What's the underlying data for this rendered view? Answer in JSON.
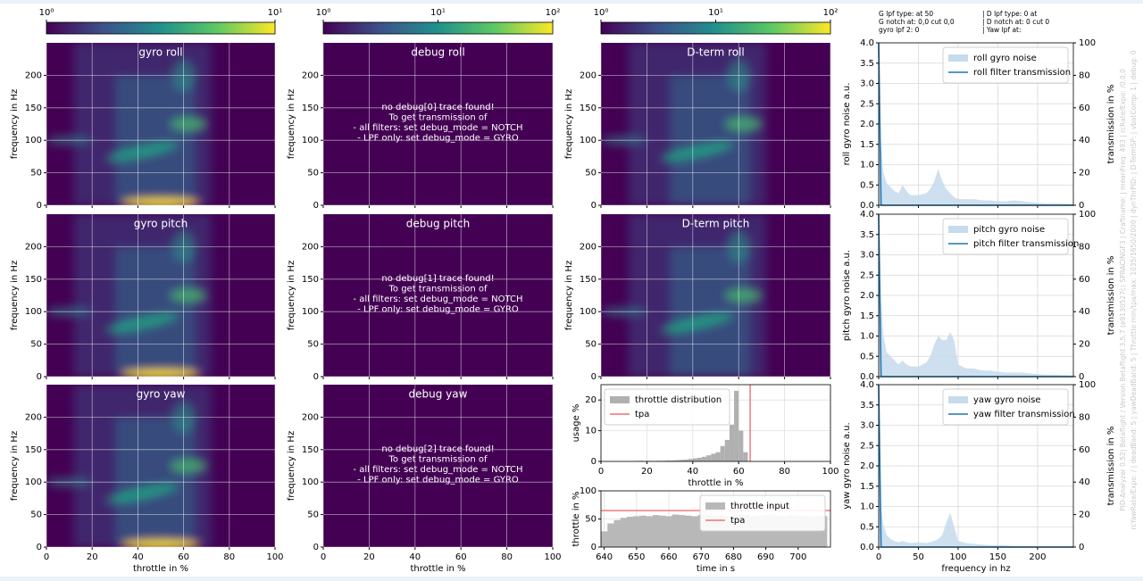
{
  "info": [
    "G lpf type:  at 50",
    "G notch at: 0,0 cut 0,0",
    "gyro lpf 2: 0",
    "| D lpf type: 0 at",
    "| D notch at: 0 cut 0",
    "| Yaw lpf at:"
  ],
  "footer": [
    "PID-Analyzer 0.52| Betaflight / Version Betaflight 3.5.7 (e9130527c) SPRACINGF3 | Craftname:  | meanFreq: 493 | rcRate/Expo: /0.0,0",
    "rcYawRate/Expo: / | deadBand: 5 | yawDeadBand: 5 | Throttle min/tpa/max: 1035/1650/2000 | dynThrPID: | D-TermSP: | vbatComp: 1 | debug: 0"
  ],
  "chart_data": [
    {
      "type": "colorbar",
      "log": true,
      "xlim": [
        1,
        10
      ],
      "xticks": [
        {
          "value": 1,
          "label": "10⁰"
        },
        {
          "value": 10,
          "label": "10¹"
        }
      ]
    },
    {
      "type": "colorbar",
      "log": true,
      "xlim": [
        1,
        100
      ],
      "xticks": [
        {
          "value": 1,
          "label": "10⁰"
        },
        {
          "value": 10,
          "label": "10¹"
        },
        {
          "value": 100,
          "label": "10²"
        }
      ]
    },
    {
      "type": "colorbar",
      "log": true,
      "xlim": [
        1,
        100
      ],
      "xticks": [
        {
          "value": 1,
          "label": "10⁰"
        },
        {
          "value": 10,
          "label": "10¹"
        },
        {
          "value": 100,
          "label": "10²"
        }
      ]
    },
    {
      "type": "heatmap",
      "title": "gyro roll",
      "ylabel": "frequency in Hz",
      "xlim": [
        0,
        100
      ],
      "xticks": [
        0,
        20,
        40,
        60,
        80,
        100
      ],
      "ylim": [
        0,
        250
      ],
      "yticks": [
        0,
        50,
        100,
        150,
        200
      ]
    },
    {
      "type": "heatmap",
      "title": "gyro pitch",
      "ylabel": "frequency in Hz",
      "xlim": [
        0,
        100
      ],
      "xticks": [
        0,
        20,
        40,
        60,
        80,
        100
      ],
      "ylim": [
        0,
        250
      ],
      "yticks": [
        0,
        50,
        100,
        150,
        200
      ]
    },
    {
      "type": "heatmap",
      "title": "gyro yaw",
      "ylabel": "frequency in Hz",
      "xlabel": "throttle in %",
      "xlim": [
        0,
        100
      ],
      "xticks": [
        0,
        20,
        40,
        60,
        80,
        100
      ],
      "ylim": [
        0,
        250
      ],
      "yticks": [
        0,
        50,
        100,
        150,
        200
      ]
    },
    {
      "type": "heatmap",
      "title": "debug roll",
      "ylabel": "frequency in Hz",
      "xlim": [
        0,
        100
      ],
      "xticks": [
        0,
        20,
        40,
        60,
        80,
        100
      ],
      "ylim": [
        0,
        250
      ],
      "yticks": [
        0,
        50,
        100,
        150,
        200
      ],
      "annotation": [
        "no debug[0] trace found!",
        "To get transmission of",
        "- all filters: set debug_mode = NOTCH",
        "- LPF only: set debug_mode = GYRO"
      ]
    },
    {
      "type": "heatmap",
      "title": "debug pitch",
      "ylabel": "frequency in Hz",
      "xlim": [
        0,
        100
      ],
      "xticks": [
        0,
        20,
        40,
        60,
        80,
        100
      ],
      "ylim": [
        0,
        250
      ],
      "yticks": [
        0,
        50,
        100,
        150,
        200
      ],
      "annotation": [
        "no debug[1] trace found!",
        "To get transmission of",
        "- all filters: set debug_mode = NOTCH",
        "- LPF only: set debug_mode = GYRO"
      ]
    },
    {
      "type": "heatmap",
      "title": "debug yaw",
      "ylabel": "frequency in Hz",
      "xlabel": "throttle in %",
      "xlim": [
        0,
        100
      ],
      "xticks": [
        0,
        20,
        40,
        60,
        80,
        100
      ],
      "ylim": [
        0,
        250
      ],
      "yticks": [
        0,
        50,
        100,
        150,
        200
      ],
      "annotation": [
        "no debug[2] trace found!",
        "To get transmission of",
        "- all filters: set debug_mode = NOTCH",
        "- LPF only: set debug_mode = GYRO"
      ]
    },
    {
      "type": "heatmap",
      "title": "D-term roll",
      "ylabel": "frequency in Hz",
      "xlim": [
        0,
        100
      ],
      "xticks": [
        0,
        20,
        40,
        60,
        80,
        100
      ],
      "ylim": [
        0,
        250
      ],
      "yticks": [
        0,
        50,
        100,
        150,
        200
      ]
    },
    {
      "type": "heatmap",
      "title": "D-term pitch",
      "ylabel": "frequency in Hz",
      "xlim": [
        0,
        100
      ],
      "xticks": [
        0,
        20,
        40,
        60,
        80,
        100
      ],
      "ylim": [
        0,
        250
      ],
      "yticks": [
        0,
        50,
        100,
        150,
        200
      ]
    },
    {
      "type": "spectrum",
      "ylabel": "roll gyro noise a.u.",
      "y2label": "transmission in %",
      "legend": "upper right",
      "grid": true,
      "xlim": [
        0,
        245
      ],
      "xticks": [
        0,
        50,
        100,
        150,
        200
      ],
      "ylim": [
        0,
        4
      ],
      "yticks": [
        {
          "value": 0,
          "label": "0.0"
        },
        0.5,
        {
          "value": 1,
          "label": "1.0"
        },
        1.5,
        {
          "value": 2,
          "label": "2.0"
        },
        2.5,
        {
          "value": 3,
          "label": "3.0"
        },
        3.5,
        {
          "value": 4,
          "label": "4.0"
        }
      ],
      "y2lim": [
        0,
        100
      ],
      "y2ticks": [
        0,
        20,
        40,
        60,
        80,
        100
      ],
      "x": [
        0,
        3,
        6,
        10,
        15,
        20,
        25,
        30,
        35,
        40,
        50,
        60,
        65,
        70,
        75,
        80,
        85,
        90,
        95,
        100,
        110,
        120,
        130,
        140,
        150,
        160,
        170,
        180,
        190,
        200,
        210,
        220,
        230,
        245
      ],
      "series": [
        {
          "name": "roll gyro noise",
          "color": "#c6dbec",
          "values": [
            4,
            1.5,
            0.8,
            0.55,
            0.45,
            0.35,
            0.3,
            0.5,
            0.35,
            0.25,
            0.25,
            0.3,
            0.4,
            0.6,
            0.9,
            0.6,
            0.4,
            0.3,
            0.2,
            0.15,
            0.15,
            0.15,
            0.12,
            0.12,
            0.1,
            0.1,
            0.12,
            0.1,
            0.08,
            0.06,
            0.05,
            0.05,
            0.04,
            0.03
          ]
        },
        {
          "name": "roll filter transmission",
          "color": "#1f77b4",
          "axis": "y2",
          "values": [
            100,
            0,
            0,
            0,
            0,
            0,
            0,
            0,
            0,
            0,
            0,
            0,
            0,
            0,
            0,
            0,
            0,
            0,
            0,
            0,
            0,
            0,
            0,
            0,
            0,
            0,
            0,
            0,
            0,
            0,
            0,
            0,
            0,
            0
          ]
        }
      ]
    },
    {
      "type": "spectrum",
      "ylabel": "pitch gyro noise a.u.",
      "y2label": "transmission in %",
      "legend": "upper right",
      "grid": true,
      "xlim": [
        0,
        245
      ],
      "xticks": [
        0,
        50,
        100,
        150,
        200
      ],
      "ylim": [
        0,
        4
      ],
      "yticks": [
        {
          "value": 0,
          "label": "0.0"
        },
        0.5,
        {
          "value": 1,
          "label": "1.0"
        },
        1.5,
        {
          "value": 2,
          "label": "2.0"
        },
        2.5,
        {
          "value": 3,
          "label": "3.0"
        },
        3.5,
        {
          "value": 4,
          "label": "4.0"
        }
      ],
      "y2lim": [
        0,
        100
      ],
      "y2ticks": [
        0,
        20,
        40,
        60,
        80,
        100
      ],
      "x": [
        0,
        3,
        6,
        10,
        15,
        20,
        25,
        30,
        35,
        40,
        50,
        60,
        65,
        70,
        75,
        80,
        85,
        90,
        95,
        100,
        110,
        120,
        130,
        140,
        150,
        160,
        170,
        180,
        190,
        200,
        210,
        220,
        230,
        245
      ],
      "series": [
        {
          "name": "pitch gyro noise",
          "color": "#c6dbec",
          "values": [
            4,
            1.9,
            1.0,
            0.6,
            0.5,
            0.4,
            0.3,
            0.4,
            0.3,
            0.25,
            0.25,
            0.35,
            0.5,
            0.8,
            1.0,
            0.9,
            0.9,
            1.1,
            0.9,
            0.3,
            0.2,
            0.2,
            0.15,
            0.15,
            0.12,
            0.1,
            0.1,
            0.1,
            0.08,
            0.06,
            0.05,
            0.05,
            0.04,
            0.03
          ]
        },
        {
          "name": "pitch filter transmission",
          "color": "#1f77b4",
          "axis": "y2",
          "values": [
            100,
            0,
            0,
            0,
            0,
            0,
            0,
            0,
            0,
            0,
            0,
            0,
            0,
            0,
            0,
            0,
            0,
            0,
            0,
            0,
            0,
            0,
            0,
            0,
            0,
            0,
            0,
            0,
            0,
            0,
            0,
            0,
            0,
            0
          ]
        }
      ]
    },
    {
      "type": "spectrum",
      "ylabel": "yaw gyro noise a.u.",
      "y2label": "transmission in %",
      "xlabel": "frequency in hz",
      "legend": "upper right",
      "grid": true,
      "xlim": [
        0,
        245
      ],
      "xticks": [
        0,
        50,
        100,
        150,
        200
      ],
      "ylim": [
        0,
        4
      ],
      "yticks": [
        {
          "value": 0,
          "label": "0.0"
        },
        0.5,
        {
          "value": 1,
          "label": "1.0"
        },
        1.5,
        {
          "value": 2,
          "label": "2.0"
        },
        2.5,
        {
          "value": 3,
          "label": "3.0"
        },
        3.5,
        {
          "value": 4,
          "label": "4.0"
        }
      ],
      "y2lim": [
        0,
        100
      ],
      "y2ticks": [
        0,
        20,
        40,
        60,
        80,
        100
      ],
      "x": [
        0,
        3,
        6,
        10,
        15,
        20,
        25,
        30,
        35,
        40,
        50,
        60,
        65,
        70,
        75,
        80,
        85,
        90,
        95,
        100,
        110,
        120,
        130,
        140,
        150,
        160,
        170,
        180,
        190,
        200,
        210,
        220,
        230,
        245
      ],
      "series": [
        {
          "name": "yaw gyro noise",
          "color": "#c6dbec",
          "values": [
            4,
            1.0,
            0.55,
            0.3,
            0.2,
            0.15,
            0.12,
            0.15,
            0.12,
            0.1,
            0.12,
            0.1,
            0.12,
            0.15,
            0.2,
            0.3,
            0.6,
            0.85,
            0.5,
            0.15,
            0.1,
            0.08,
            0.06,
            0.05,
            0.05,
            0.04,
            0.03,
            0.03,
            0.02,
            0.02,
            0.02,
            0.02,
            0.02,
            0.02
          ]
        },
        {
          "name": "yaw filter transmission",
          "color": "#1f77b4",
          "axis": "y2",
          "values": [
            100,
            0,
            0,
            0,
            0,
            0,
            0,
            0,
            0,
            0,
            0,
            0,
            0,
            0,
            0,
            0,
            0,
            0,
            0,
            0,
            0,
            0,
            0,
            0,
            0,
            0,
            0,
            0,
            0,
            0,
            0,
            0,
            0,
            0
          ]
        }
      ]
    },
    {
      "type": "histogram",
      "xlabel": "throttle in %",
      "ylabel": "usage %",
      "legend": "upper left",
      "grid": true,
      "xlim": [
        0,
        100
      ],
      "xticks": [
        0,
        20,
        40,
        60,
        80,
        100
      ],
      "ylim": [
        0,
        25
      ],
      "yticks": [
        0,
        10,
        20
      ],
      "bins": [
        0,
        2,
        4,
        6,
        8,
        10,
        12,
        14,
        16,
        18,
        20,
        22,
        24,
        26,
        28,
        30,
        32,
        34,
        36,
        38,
        40,
        42,
        44,
        46,
        48,
        50,
        52,
        54,
        56,
        58,
        60,
        62,
        64,
        66,
        68,
        70,
        72,
        74,
        76,
        78,
        80,
        82,
        84,
        86,
        88,
        90,
        92,
        94,
        96,
        98,
        100
      ],
      "series": [
        {
          "name": "throttle distribution",
          "color": "#b0b0b0",
          "values": [
            0,
            0,
            0,
            0,
            0,
            0,
            0,
            0.1,
            0.2,
            0.1,
            0.2,
            0.1,
            0.2,
            0.2,
            0.3,
            0.3,
            0.4,
            0.5,
            0.6,
            0.8,
            1,
            1.2,
            1.5,
            2,
            2.5,
            3,
            5,
            7,
            12,
            23,
            10,
            3,
            0,
            0,
            0,
            0,
            0,
            0,
            0,
            0,
            0,
            0,
            0,
            0,
            0,
            0,
            0,
            0,
            0,
            0
          ]
        }
      ],
      "tpa": {
        "name": "tpa",
        "color": "#f07070",
        "value": 65
      }
    },
    {
      "type": "timeseries",
      "xlabel": "time in s",
      "ylabel": "throttle in %",
      "legend": "upper right",
      "grid": true,
      "xlim": [
        639,
        710
      ],
      "xticks": [
        640,
        650,
        660,
        670,
        680,
        690,
        700
      ],
      "ylim": [
        0,
        100
      ],
      "yticks": [
        0,
        50,
        100
      ],
      "x": [
        639,
        641,
        643,
        645,
        647,
        649,
        651,
        653,
        655,
        657,
        659,
        661,
        663,
        665,
        667,
        669,
        671,
        673,
        675,
        677,
        679,
        681,
        683,
        685,
        687,
        689,
        691,
        693,
        695,
        697,
        699,
        701,
        703,
        705,
        707,
        709
      ],
      "series": [
        {
          "name": "throttle input",
          "color": "#b8b8b8",
          "values": [
            28,
            42,
            48,
            52,
            54,
            55,
            56,
            55,
            57,
            56,
            55,
            58,
            57,
            56,
            55,
            57,
            58,
            56,
            57,
            55,
            56,
            58,
            57,
            55,
            56,
            57,
            58,
            56,
            55,
            57,
            56,
            55,
            54,
            56,
            55,
            52
          ]
        }
      ],
      "tpa": {
        "name": "tpa",
        "color": "#f07070",
        "value": 65
      }
    }
  ]
}
